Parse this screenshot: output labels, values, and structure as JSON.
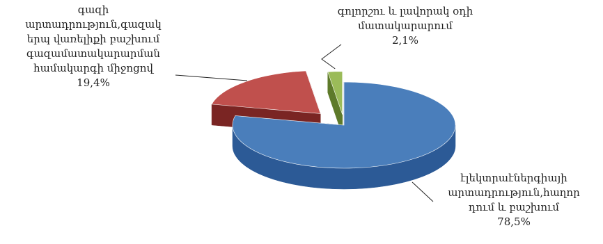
{
  "chart_data": {
    "type": "pie",
    "style": "3d-exploded",
    "title": "",
    "slices": [
      {
        "label_lines": [
          "էլեկտրաէներգիայի",
          "արտադրություն,հաղոր",
          "դում և բաշխում"
        ],
        "value": 78.5,
        "display": "78,5%",
        "color": "#4a7ebb",
        "side_color": "#2c5a96"
      },
      {
        "label_lines": [
          "գազի",
          "արտադրություն,գազակ",
          "երպ վառելիքի բաշխում",
          "գազամատակարարման",
          "համակարգի միջոցով"
        ],
        "value": 19.4,
        "display": "19,4%",
        "color": "#c0504d",
        "side_color": "#7a2523"
      },
      {
        "label_lines": [
          "գոլորշու և լավորակ օդի",
          "մատակարարում"
        ],
        "value": 2.1,
        "display": "2,1%",
        "color": "#9bbb59",
        "side_color": "#5e7a2a"
      }
    ]
  }
}
